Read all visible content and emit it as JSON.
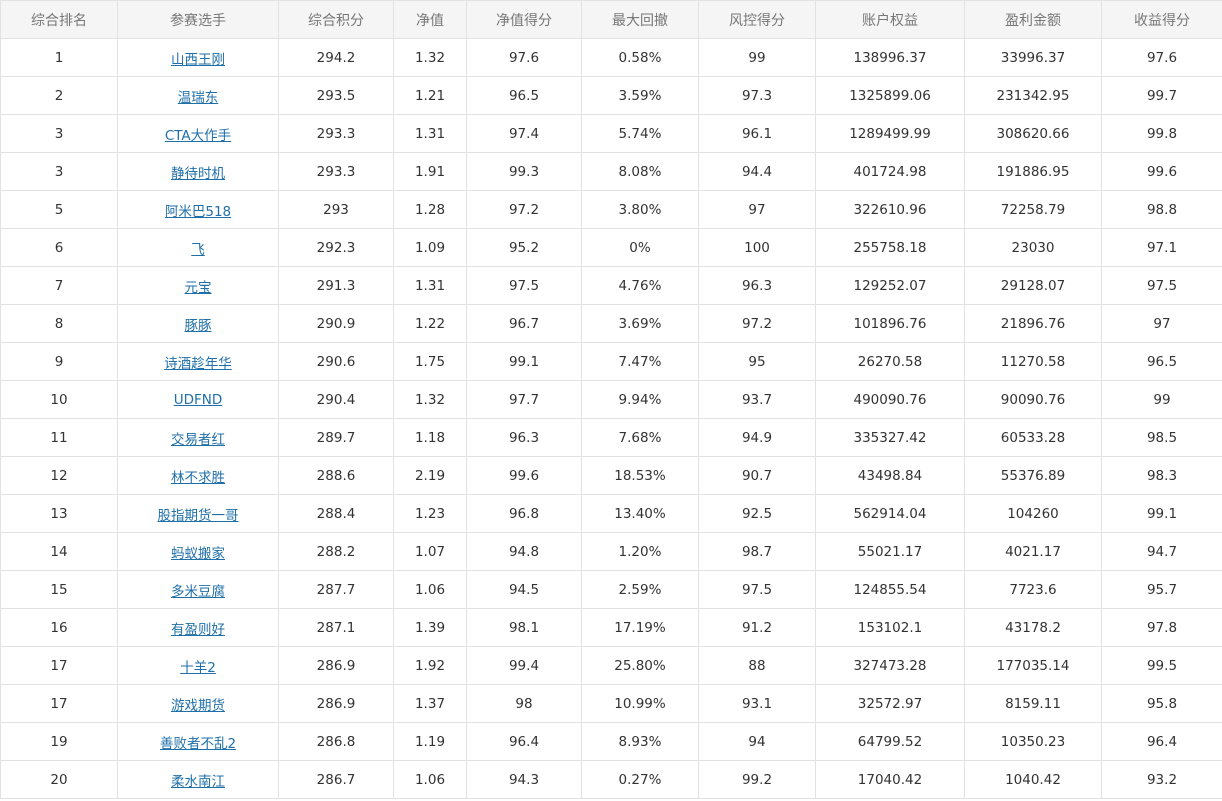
{
  "columns": [
    "综合排名",
    "参赛选手",
    "综合积分",
    "净值",
    "净值得分",
    "最大回撤",
    "风控得分",
    "账户权益",
    "盈利金额",
    "收益得分"
  ],
  "rows": [
    {
      "rank": "1",
      "player": "山西王刚",
      "composite_score": "294.2",
      "nav": "1.32",
      "nav_score": "97.6",
      "max_drawdown": "0.58%",
      "risk_score": "99",
      "equity": "138996.37",
      "profit": "33996.37",
      "return_score": "97.6"
    },
    {
      "rank": "2",
      "player": "温瑞东",
      "composite_score": "293.5",
      "nav": "1.21",
      "nav_score": "96.5",
      "max_drawdown": "3.59%",
      "risk_score": "97.3",
      "equity": "1325899.06",
      "profit": "231342.95",
      "return_score": "99.7"
    },
    {
      "rank": "3",
      "player": "CTA大作手",
      "composite_score": "293.3",
      "nav": "1.31",
      "nav_score": "97.4",
      "max_drawdown": "5.74%",
      "risk_score": "96.1",
      "equity": "1289499.99",
      "profit": "308620.66",
      "return_score": "99.8"
    },
    {
      "rank": "3",
      "player": "静待时机",
      "composite_score": "293.3",
      "nav": "1.91",
      "nav_score": "99.3",
      "max_drawdown": "8.08%",
      "risk_score": "94.4",
      "equity": "401724.98",
      "profit": "191886.95",
      "return_score": "99.6"
    },
    {
      "rank": "5",
      "player": "阿米巴518",
      "composite_score": "293",
      "nav": "1.28",
      "nav_score": "97.2",
      "max_drawdown": "3.80%",
      "risk_score": "97",
      "equity": "322610.96",
      "profit": "72258.79",
      "return_score": "98.8"
    },
    {
      "rank": "6",
      "player": "飞",
      "composite_score": "292.3",
      "nav": "1.09",
      "nav_score": "95.2",
      "max_drawdown": "0%",
      "risk_score": "100",
      "equity": "255758.18",
      "profit": "23030",
      "return_score": "97.1"
    },
    {
      "rank": "7",
      "player": "元宝",
      "composite_score": "291.3",
      "nav": "1.31",
      "nav_score": "97.5",
      "max_drawdown": "4.76%",
      "risk_score": "96.3",
      "equity": "129252.07",
      "profit": "29128.07",
      "return_score": "97.5"
    },
    {
      "rank": "8",
      "player": "豚豚",
      "composite_score": "290.9",
      "nav": "1.22",
      "nav_score": "96.7",
      "max_drawdown": "3.69%",
      "risk_score": "97.2",
      "equity": "101896.76",
      "profit": "21896.76",
      "return_score": "97"
    },
    {
      "rank": "9",
      "player": "诗酒趁年华",
      "composite_score": "290.6",
      "nav": "1.75",
      "nav_score": "99.1",
      "max_drawdown": "7.47%",
      "risk_score": "95",
      "equity": "26270.58",
      "profit": "11270.58",
      "return_score": "96.5"
    },
    {
      "rank": "10",
      "player": "UDFND",
      "composite_score": "290.4",
      "nav": "1.32",
      "nav_score": "97.7",
      "max_drawdown": "9.94%",
      "risk_score": "93.7",
      "equity": "490090.76",
      "profit": "90090.76",
      "return_score": "99"
    },
    {
      "rank": "11",
      "player": "交易者红",
      "composite_score": "289.7",
      "nav": "1.18",
      "nav_score": "96.3",
      "max_drawdown": "7.68%",
      "risk_score": "94.9",
      "equity": "335327.42",
      "profit": "60533.28",
      "return_score": "98.5"
    },
    {
      "rank": "12",
      "player": "林不求胜",
      "composite_score": "288.6",
      "nav": "2.19",
      "nav_score": "99.6",
      "max_drawdown": "18.53%",
      "risk_score": "90.7",
      "equity": "43498.84",
      "profit": "55376.89",
      "return_score": "98.3"
    },
    {
      "rank": "13",
      "player": "股指期货一哥",
      "composite_score": "288.4",
      "nav": "1.23",
      "nav_score": "96.8",
      "max_drawdown": "13.40%",
      "risk_score": "92.5",
      "equity": "562914.04",
      "profit": "104260",
      "return_score": "99.1"
    },
    {
      "rank": "14",
      "player": "蚂蚁搬家",
      "composite_score": "288.2",
      "nav": "1.07",
      "nav_score": "94.8",
      "max_drawdown": "1.20%",
      "risk_score": "98.7",
      "equity": "55021.17",
      "profit": "4021.17",
      "return_score": "94.7"
    },
    {
      "rank": "15",
      "player": "多米豆腐",
      "composite_score": "287.7",
      "nav": "1.06",
      "nav_score": "94.5",
      "max_drawdown": "2.59%",
      "risk_score": "97.5",
      "equity": "124855.54",
      "profit": "7723.6",
      "return_score": "95.7"
    },
    {
      "rank": "16",
      "player": "有盈则好",
      "composite_score": "287.1",
      "nav": "1.39",
      "nav_score": "98.1",
      "max_drawdown": "17.19%",
      "risk_score": "91.2",
      "equity": "153102.1",
      "profit": "43178.2",
      "return_score": "97.8"
    },
    {
      "rank": "17",
      "player": "十羊2",
      "composite_score": "286.9",
      "nav": "1.92",
      "nav_score": "99.4",
      "max_drawdown": "25.80%",
      "risk_score": "88",
      "equity": "327473.28",
      "profit": "177035.14",
      "return_score": "99.5"
    },
    {
      "rank": "17",
      "player": "游戏期货",
      "composite_score": "286.9",
      "nav": "1.37",
      "nav_score": "98",
      "max_drawdown": "10.99%",
      "risk_score": "93.1",
      "equity": "32572.97",
      "profit": "8159.11",
      "return_score": "95.8"
    },
    {
      "rank": "19",
      "player": "善败者不乱2",
      "composite_score": "286.8",
      "nav": "1.19",
      "nav_score": "96.4",
      "max_drawdown": "8.93%",
      "risk_score": "94",
      "equity": "64799.52",
      "profit": "10350.23",
      "return_score": "96.4"
    },
    {
      "rank": "20",
      "player": "柔水南江",
      "composite_score": "286.7",
      "nav": "1.06",
      "nav_score": "94.3",
      "max_drawdown": "0.27%",
      "risk_score": "99.2",
      "equity": "17040.42",
      "profit": "1040.42",
      "return_score": "93.2"
    }
  ],
  "colors": {
    "header_bg": "#f5f5f5",
    "header_text": "#777777",
    "border": "#e2e2e2",
    "link": "#1f6fa8",
    "text": "#333333"
  }
}
